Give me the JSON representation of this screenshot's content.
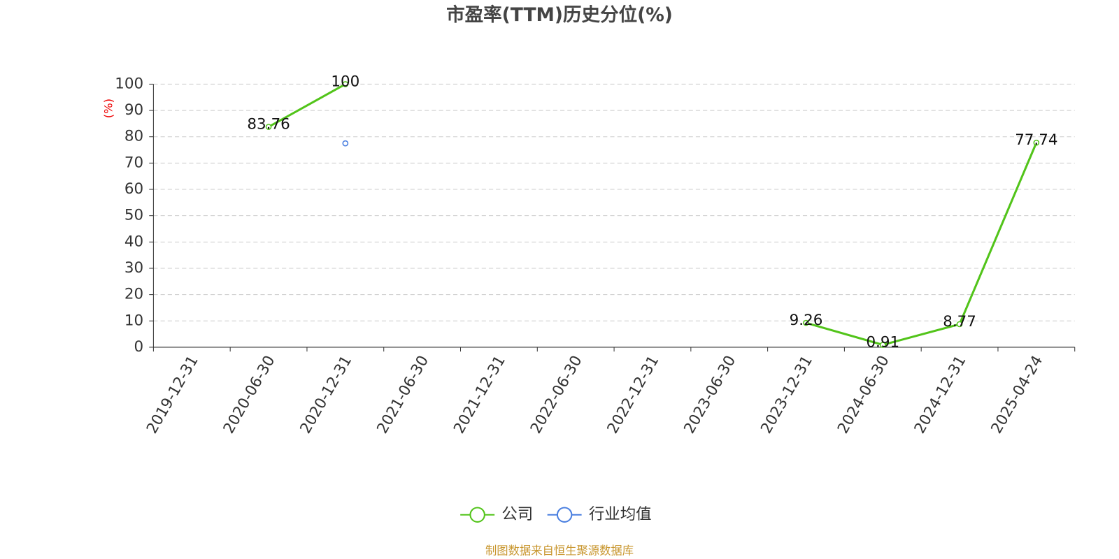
{
  "chart_data": {
    "type": "line",
    "title": "市盈率(TTM)历史分位(%)",
    "y_label": "(%)",
    "categories": [
      "2019-12-31",
      "2020-06-30",
      "2020-12-31",
      "2021-06-30",
      "2021-12-31",
      "2022-06-30",
      "2022-12-31",
      "2023-06-30",
      "2023-12-31",
      "2024-06-30",
      "2024-12-31",
      "2025-04-24"
    ],
    "series": [
      {
        "name": "公司",
        "color": "#52c41a",
        "values": [
          null,
          83.76,
          100,
          null,
          null,
          null,
          null,
          null,
          9.26,
          0.91,
          8.77,
          77.74
        ],
        "show_labels": true
      },
      {
        "name": "行业均值",
        "color": "#4a7fe0",
        "values": [
          null,
          null,
          77.5,
          null,
          null,
          null,
          null,
          null,
          null,
          null,
          null,
          null
        ],
        "show_labels": false
      }
    ],
    "ylim": [
      0,
      100
    ],
    "yticks": [
      0,
      10,
      20,
      30,
      40,
      50,
      60,
      70,
      80,
      90,
      100
    ],
    "grid": true,
    "footer": "制图数据来自恒生聚源数据库"
  }
}
